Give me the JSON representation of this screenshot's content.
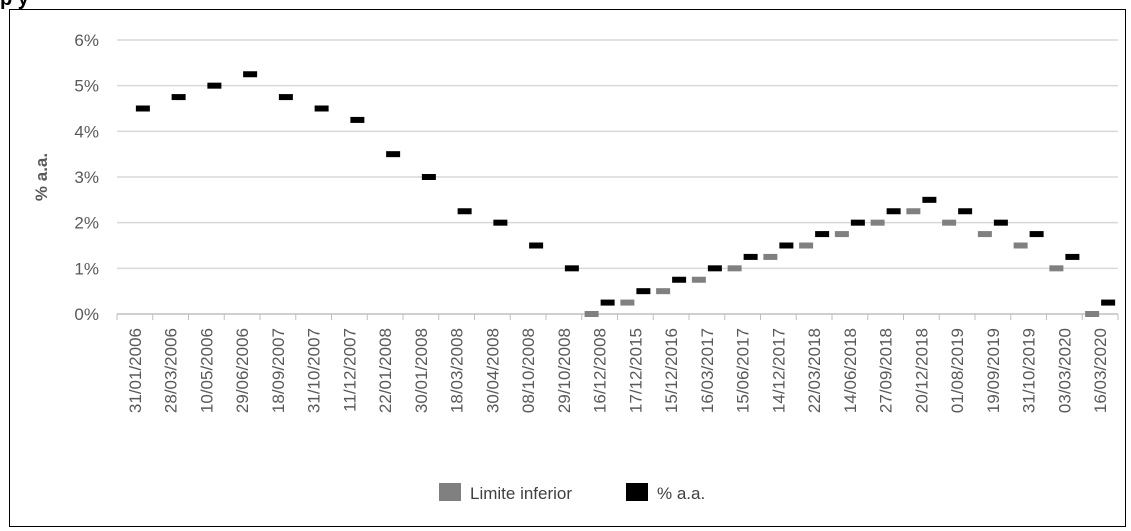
{
  "header": {
    "partial_title": "p                     y"
  },
  "chart_data": {
    "type": "scatter",
    "title": "",
    "xlabel": "",
    "ylabel": "% a.a.",
    "ylim": [
      0,
      6
    ],
    "yticks": [
      "0%",
      "1%",
      "2%",
      "3%",
      "4%",
      "5%",
      "6%"
    ],
    "grid": true,
    "legend_position": "bottom",
    "categories": [
      "31/01/2006",
      "28/03/2006",
      "10/05/2006",
      "29/06/2006",
      "18/09/2007",
      "31/10/2007",
      "11/12/2007",
      "22/01/2008",
      "30/01/2008",
      "18/03/2008",
      "30/04/2008",
      "08/10/2008",
      "29/10/2008",
      "16/12/2008",
      "17/12/2015",
      "15/12/2016",
      "16/03/2017",
      "15/06/2017",
      "14/12/2017",
      "22/03/2018",
      "14/06/2018",
      "27/09/2018",
      "20/12/2018",
      "01/08/2019",
      "19/09/2019",
      "31/10/2019",
      "03/03/2020",
      "16/03/2020"
    ],
    "series": [
      {
        "name": "Limite inferior",
        "color": "#808080",
        "values": [
          null,
          null,
          null,
          null,
          null,
          null,
          null,
          null,
          null,
          null,
          null,
          null,
          null,
          0,
          0.25,
          0.5,
          0.75,
          1.0,
          1.25,
          1.5,
          1.75,
          2.0,
          2.25,
          2.0,
          1.75,
          1.5,
          1.0,
          0
        ]
      },
      {
        "name": "% a.a.",
        "color": "#000000",
        "values": [
          4.5,
          4.75,
          5.0,
          5.25,
          4.75,
          4.5,
          4.25,
          3.5,
          3.0,
          2.25,
          2.0,
          1.5,
          1.0,
          0.25,
          0.5,
          0.75,
          1.0,
          1.25,
          1.5,
          1.75,
          2.0,
          2.25,
          2.5,
          2.25,
          2.0,
          1.75,
          1.25,
          0.25
        ]
      }
    ]
  }
}
